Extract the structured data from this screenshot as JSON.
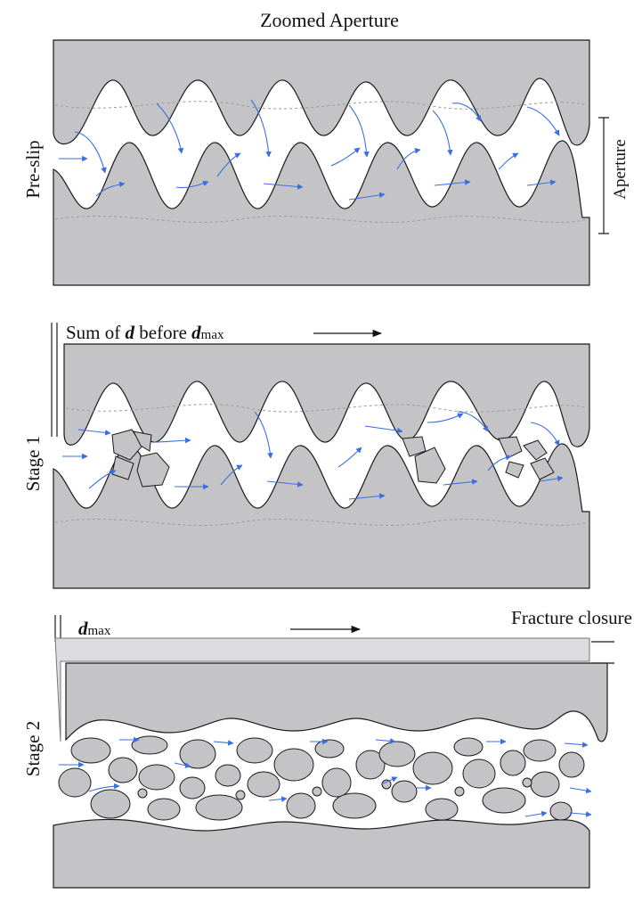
{
  "title": "Zoomed Aperture",
  "panels": [
    {
      "label": "Pre-slip",
      "right_label": "Aperture"
    },
    {
      "label": "Stage 1",
      "annotation_prefix": "Sum of ",
      "annotation_bold": "d",
      "annotation_mid": " before ",
      "annotation_bold2": "d",
      "annotation_sub": "max"
    },
    {
      "label": "Stage 2",
      "annotation_bold": "d",
      "annotation_sub": "max",
      "right_label": "Fracture closure"
    }
  ],
  "colors": {
    "rock": "#c4c4c6",
    "flow": "#3a6fe0",
    "outline": "#1a1a1a"
  },
  "icons": [
    "arrow-right-icon",
    "flow-arrow-icon"
  ]
}
